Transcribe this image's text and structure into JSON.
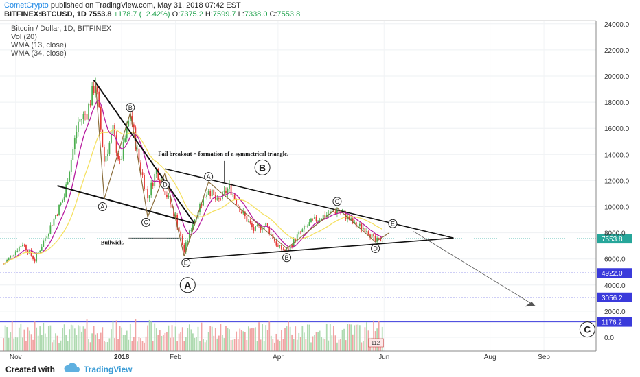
{
  "header": {
    "author": "CometCrypto",
    "published_text": "published on TradingView.com, May 31, 2018 07:42 EST",
    "symbol": "BITFINEX:BTCUSD, 1D",
    "last": "7553.8",
    "change": "+178.7 (+2.42%)",
    "o_label": "O:",
    "o_value": "7375.2",
    "h_label": "H:",
    "h_value": "7599.7",
    "l_label": "L:",
    "l_value": "7338.0",
    "c_label": "C:",
    "c_value": "7553.8"
  },
  "legend": {
    "title": "Bitcoin / Dollar, 1D, BITFINEX",
    "vol": "Vol (20)",
    "wma13": "WMA (13, close)",
    "wma34": "WMA (34, close)"
  },
  "footer": {
    "created_with": "Created with",
    "brand": "TradingView"
  },
  "colors": {
    "up": "#4caf50",
    "down": "#e53935",
    "wma13": "#b71c9f",
    "wma34": "#f5e163",
    "level": "#3a3adb",
    "price_line": "#26a69a",
    "vol_up": "#a5d6a7",
    "vol_down": "#ef9a9a"
  },
  "chart_data": {
    "type": "candlestick",
    "x_ticks": [
      "Nov",
      "2018",
      "Feb",
      "Apr",
      "Jun",
      "Aug",
      "Sep"
    ],
    "y_ticks": [
      "24000.0",
      "22000.0",
      "20000.0",
      "18000.0",
      "16000.0",
      "14000.0",
      "12000.0",
      "10000.0",
      "8000.0",
      "6000.0",
      "4000.0",
      "2000.0",
      "0.0"
    ],
    "ylim": [
      -400,
      24800
    ],
    "current_price": "7553.8",
    "levels": [
      {
        "label": "4922.0",
        "value": 4922
      },
      {
        "label": "3056.2",
        "value": 3056.2
      },
      {
        "label": "1176.2",
        "value": 1176.2
      }
    ],
    "price_path": [
      {
        "date": "2017-10-25",
        "price": 5600
      },
      {
        "date": "2017-11-05",
        "price": 7200
      },
      {
        "date": "2017-11-12",
        "price": 5900
      },
      {
        "date": "2017-11-20",
        "price": 8200
      },
      {
        "date": "2017-11-29",
        "price": 10800
      },
      {
        "date": "2017-12-07",
        "price": 16500
      },
      {
        "date": "2017-12-12",
        "price": 17200
      },
      {
        "date": "2017-12-17",
        "price": 19600
      },
      {
        "date": "2017-12-22",
        "price": 13500
      },
      {
        "date": "2017-12-27",
        "price": 15800
      },
      {
        "date": "2017-12-31",
        "price": 13200
      },
      {
        "date": "2018-01-06",
        "price": 17100
      },
      {
        "date": "2018-01-11",
        "price": 13400
      },
      {
        "date": "2018-01-16",
        "price": 10700
      },
      {
        "date": "2018-01-21",
        "price": 12800
      },
      {
        "date": "2018-01-26",
        "price": 11200
      },
      {
        "date": "2018-02-01",
        "price": 9200
      },
      {
        "date": "2018-02-06",
        "price": 6600
      },
      {
        "date": "2018-02-10",
        "price": 8400
      },
      {
        "date": "2018-02-15",
        "price": 10100
      },
      {
        "date": "2018-02-20",
        "price": 11400
      },
      {
        "date": "2018-02-25",
        "price": 10300
      },
      {
        "date": "2018-03-04",
        "price": 11500
      },
      {
        "date": "2018-03-11",
        "price": 9600
      },
      {
        "date": "2018-03-18",
        "price": 8200
      },
      {
        "date": "2018-03-25",
        "price": 8600
      },
      {
        "date": "2018-04-01",
        "price": 6900
      },
      {
        "date": "2018-04-06",
        "price": 6600
      },
      {
        "date": "2018-04-13",
        "price": 7900
      },
      {
        "date": "2018-04-20",
        "price": 8800
      },
      {
        "date": "2018-04-27",
        "price": 9300
      },
      {
        "date": "2018-05-05",
        "price": 9700
      },
      {
        "date": "2018-05-10",
        "price": 9300
      },
      {
        "date": "2018-05-15",
        "price": 8600
      },
      {
        "date": "2018-05-22",
        "price": 8300
      },
      {
        "date": "2018-05-27",
        "price": 7300
      },
      {
        "date": "2018-05-31",
        "price": 7554
      }
    ],
    "annotations": {
      "fail_breakout": "Fail breakout = formation of a symmetrical triangle.",
      "bullwick": "Bullwick.",
      "big_wave_B": "B",
      "big_wave_A": "A",
      "big_wave_C": "C",
      "wave_labels": [
        "A",
        "B",
        "C",
        "D",
        "E",
        "A",
        "B",
        "C",
        "D",
        "E"
      ],
      "vol_badge": "112"
    }
  }
}
